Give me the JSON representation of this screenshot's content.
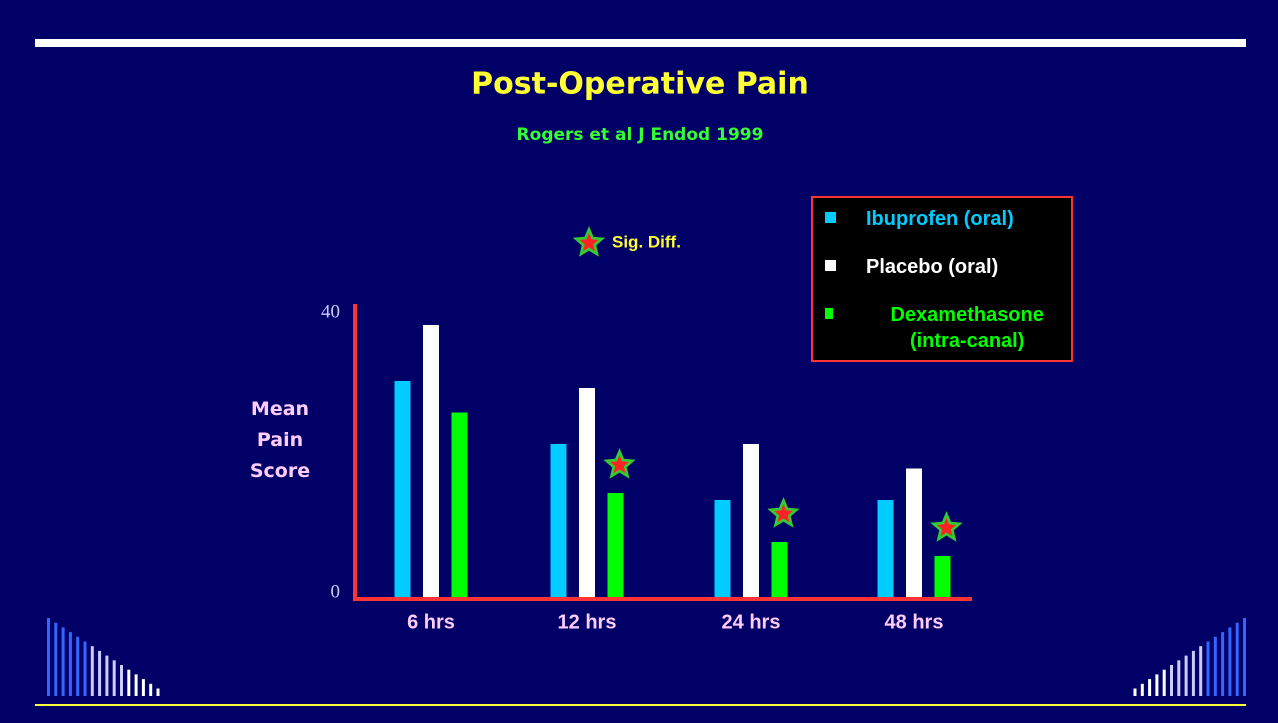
{
  "chart_data": {
    "type": "bar",
    "title": "Post-Operative Pain",
    "subtitle": "Rogers et al   J Endod  1999",
    "y_label": "Mean Pain Score",
    "annotation": "Sig. Diff.",
    "categories": [
      "6 hrs",
      "12 hrs",
      "24 hrs",
      "48 hrs"
    ],
    "series": [
      {
        "name": "Ibuprofen (oral)",
        "color": "#00ccff",
        "values": [
          31,
          22,
          14,
          14
        ]
      },
      {
        "name": "Placebo (oral)",
        "color": "#ffffff",
        "values": [
          39,
          30,
          22,
          18.5
        ]
      },
      {
        "name": "Dexamethasone (intra-canal)",
        "color": "#00ff00",
        "values": [
          26.5,
          15,
          8,
          6
        ],
        "significant": [
          false,
          true,
          true,
          true
        ]
      }
    ],
    "ylim": [
      0,
      40
    ],
    "yticks": [
      0,
      40
    ],
    "grid": false
  }
}
